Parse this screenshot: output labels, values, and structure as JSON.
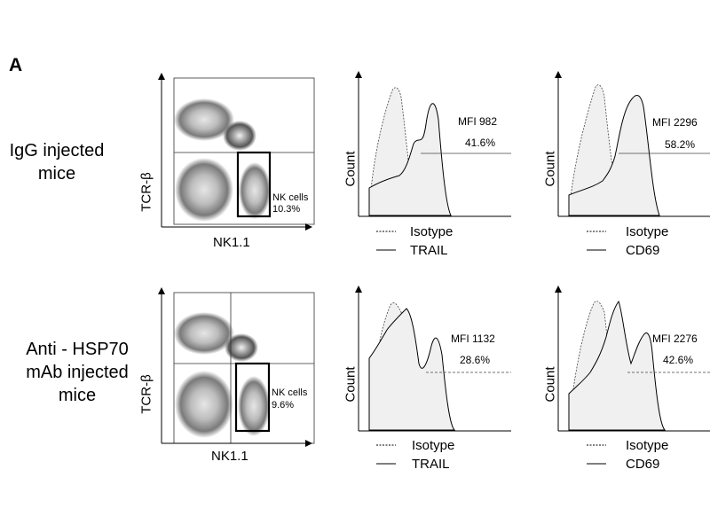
{
  "panel_label": "A",
  "rows": [
    {
      "label_lines": [
        "IgG injected",
        "mice"
      ]
    },
    {
      "label_lines": [
        "Anti - HSP70",
        "mAb  injected",
        "mice"
      ]
    }
  ],
  "colors": {
    "density_light": "#d9d9d9",
    "density_mid": "#9a9a9a",
    "density_dark": "#5a5a5a",
    "histogram_fill": "#f0f0f0"
  },
  "chart_data": [
    {
      "type": "scatter",
      "subtype": "flow-cytometry-density",
      "row": 0,
      "xlabel": "NK1.1",
      "ylabel": "TCR-β",
      "gate_label_lines": [
        "NK cells",
        "10.3%"
      ],
      "gate_percent": 10.3,
      "quadrant_lines": "horizontal"
    },
    {
      "type": "area",
      "subtype": "flow-cytometry-histogram",
      "row": 0,
      "ylabel": "Count",
      "mfi_label": "MFI 982",
      "percent_label": "41.6%",
      "mfi": 982,
      "percent_positive": 41.6,
      "legend": [
        "Isotype",
        "TRAIL"
      ]
    },
    {
      "type": "area",
      "subtype": "flow-cytometry-histogram",
      "row": 0,
      "ylabel": "Count",
      "mfi_label": "MFI 2296",
      "percent_label": "58.2%",
      "mfi": 2296,
      "percent_positive": 58.2,
      "legend": [
        "Isotype",
        "CD69"
      ]
    },
    {
      "type": "scatter",
      "subtype": "flow-cytometry-density",
      "row": 1,
      "xlabel": "NK1.1",
      "ylabel": "TCR-β",
      "gate_label_lines": [
        "NK cells",
        "9.6%"
      ],
      "gate_percent": 9.6,
      "quadrant_lines": "cross"
    },
    {
      "type": "area",
      "subtype": "flow-cytometry-histogram",
      "row": 1,
      "ylabel": "Count",
      "mfi_label": "MFI 1132",
      "percent_label": "28.6%",
      "mfi": 1132,
      "percent_positive": 28.6,
      "legend": [
        "Isotype",
        "TRAIL"
      ]
    },
    {
      "type": "area",
      "subtype": "flow-cytometry-histogram",
      "row": 1,
      "ylabel": "Count",
      "mfi_label": "MFI 2276",
      "percent_label": "42.6%",
      "mfi": 2276,
      "percent_positive": 42.6,
      "legend": [
        "Isotype",
        "CD69"
      ]
    }
  ]
}
